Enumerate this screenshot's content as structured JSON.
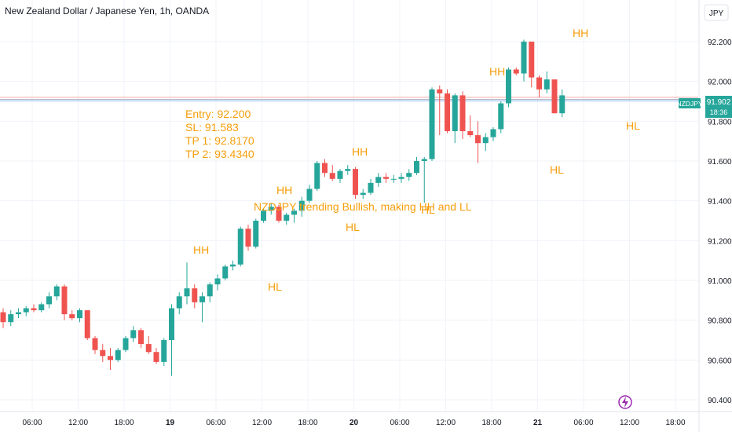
{
  "chart_data": {
    "type": "candlestick",
    "title": "New Zealand Dollar / Japanese Yen, 1h, OANDA",
    "currency_button": "JPY",
    "y_ticks": [
      "92.200",
      "92.000",
      "91.800",
      "91.600",
      "91.400",
      "91.200",
      "91.000",
      "90.800",
      "90.600",
      "90.400"
    ],
    "ylim": [
      90.36,
      92.32
    ],
    "x_ticks": [
      {
        "label": "06:00",
        "bold": false
      },
      {
        "label": "12:00",
        "bold": false
      },
      {
        "label": "18:00",
        "bold": false
      },
      {
        "label": "19",
        "bold": true
      },
      {
        "label": "06:00",
        "bold": false
      },
      {
        "label": "12:00",
        "bold": false
      },
      {
        "label": "18:00",
        "bold": false
      },
      {
        "label": "20",
        "bold": true
      },
      {
        "label": "06:00",
        "bold": false
      },
      {
        "label": "12:00",
        "bold": false
      },
      {
        "label": "18:00",
        "bold": false
      },
      {
        "label": "21",
        "bold": true
      },
      {
        "label": "06:00",
        "bold": false
      },
      {
        "label": "12:00",
        "bold": false
      },
      {
        "label": "18:00",
        "bold": false
      }
    ],
    "candles": [
      [
        90.84,
        90.86,
        90.76,
        90.79
      ],
      [
        90.79,
        90.85,
        90.77,
        90.83
      ],
      [
        90.83,
        90.86,
        90.81,
        90.84
      ],
      [
        90.84,
        90.87,
        90.82,
        90.86
      ],
      [
        90.86,
        90.88,
        90.84,
        90.85
      ],
      [
        90.85,
        90.89,
        90.84,
        90.88
      ],
      [
        90.88,
        90.94,
        90.86,
        90.92
      ],
      [
        90.92,
        90.98,
        90.9,
        90.97
      ],
      [
        90.97,
        90.98,
        90.8,
        90.83
      ],
      [
        90.83,
        90.85,
        90.8,
        90.81
      ],
      [
        90.81,
        90.86,
        90.79,
        90.85
      ],
      [
        90.85,
        90.85,
        90.7,
        90.71
      ],
      [
        90.71,
        90.72,
        90.63,
        90.65
      ],
      [
        90.65,
        90.68,
        90.59,
        90.62
      ],
      [
        90.62,
        90.66,
        90.55,
        90.6
      ],
      [
        90.6,
        90.66,
        90.59,
        90.65
      ],
      [
        90.65,
        90.72,
        90.64,
        90.71
      ],
      [
        90.71,
        90.77,
        90.69,
        90.75
      ],
      [
        90.75,
        90.76,
        90.66,
        90.68
      ],
      [
        90.68,
        90.72,
        90.63,
        90.64
      ],
      [
        90.64,
        90.66,
        90.58,
        90.59
      ],
      [
        90.59,
        90.71,
        90.57,
        90.7
      ],
      [
        90.7,
        90.88,
        90.52,
        90.86
      ],
      [
        90.86,
        90.94,
        90.83,
        90.92
      ],
      [
        90.92,
        91.09,
        90.88,
        90.96
      ],
      [
        90.96,
        90.98,
        90.86,
        90.89
      ],
      [
        90.89,
        90.94,
        90.79,
        90.92
      ],
      [
        90.92,
        90.99,
        90.89,
        90.98
      ],
      [
        90.98,
        91.03,
        90.95,
        91.01
      ],
      [
        91.01,
        91.08,
        91.0,
        91.07
      ],
      [
        91.07,
        91.1,
        91.05,
        91.08
      ],
      [
        91.08,
        91.27,
        91.07,
        91.26
      ],
      [
        91.26,
        91.28,
        91.15,
        91.17
      ],
      [
        91.17,
        91.31,
        91.16,
        91.3
      ],
      [
        91.3,
        91.36,
        91.29,
        91.35
      ],
      [
        91.35,
        91.39,
        91.33,
        91.37
      ],
      [
        91.37,
        91.38,
        91.29,
        91.3
      ],
      [
        91.3,
        91.34,
        91.28,
        91.33
      ],
      [
        91.33,
        91.36,
        91.29,
        91.35
      ],
      [
        91.35,
        91.42,
        91.32,
        91.4
      ],
      [
        91.4,
        91.48,
        91.39,
        91.46
      ],
      [
        91.46,
        91.6,
        91.45,
        91.59
      ],
      [
        91.59,
        91.61,
        91.52,
        91.54
      ],
      [
        91.54,
        91.58,
        91.5,
        91.51
      ],
      [
        91.51,
        91.56,
        91.49,
        91.55
      ],
      [
        91.55,
        91.58,
        91.53,
        91.56
      ],
      [
        91.56,
        91.57,
        91.41,
        91.43
      ],
      [
        91.43,
        91.46,
        91.41,
        91.44
      ],
      [
        91.44,
        91.51,
        91.43,
        91.49
      ],
      [
        91.49,
        91.54,
        91.47,
        91.52
      ],
      [
        91.52,
        91.54,
        91.49,
        91.51
      ],
      [
        91.51,
        91.53,
        91.49,
        91.51
      ],
      [
        91.51,
        91.54,
        91.49,
        91.52
      ],
      [
        91.52,
        91.56,
        91.5,
        91.54
      ],
      [
        91.54,
        91.62,
        91.53,
        91.6
      ],
      [
        91.6,
        91.62,
        91.39,
        91.61
      ],
      [
        91.61,
        91.97,
        91.6,
        91.96
      ],
      [
        91.96,
        91.98,
        91.73,
        91.94
      ],
      [
        91.94,
        91.96,
        91.74,
        91.75
      ],
      [
        91.75,
        91.94,
        91.69,
        91.93
      ],
      [
        91.93,
        91.95,
        91.71,
        91.75
      ],
      [
        91.75,
        91.83,
        91.72,
        91.73
      ],
      [
        91.73,
        91.8,
        91.59,
        91.69
      ],
      [
        91.69,
        91.74,
        91.65,
        91.72
      ],
      [
        91.72,
        91.77,
        91.7,
        91.76
      ],
      [
        91.76,
        91.9,
        91.74,
        91.89
      ],
      [
        91.89,
        92.07,
        91.87,
        92.06
      ],
      [
        92.06,
        92.07,
        92.03,
        92.04
      ],
      [
        92.04,
        92.21,
        92.0,
        92.2
      ],
      [
        92.2,
        92.2,
        91.97,
        92.02
      ],
      [
        92.02,
        92.03,
        91.92,
        91.96
      ],
      [
        91.96,
        92.05,
        91.94,
        92.01
      ],
      [
        92.01,
        92.01,
        91.84,
        91.84
      ],
      [
        91.84,
        91.96,
        91.82,
        91.93
      ]
    ],
    "colors": {
      "up": "#26a69a",
      "down": "#ef5350",
      "annotation": "#f59e0b",
      "price_tag": "#26a69a",
      "grid": "#f0f3fa"
    },
    "price_lines": [
      91.92,
      91.91,
      91.902
    ],
    "price_tag": {
      "symbol": "NZDJPY",
      "price": "91.902",
      "countdown": "18:36"
    },
    "annotations": {
      "trade_lines": [
        "Entry: 92.200",
        "SL: 91.583",
        "TP 1: 92.8170",
        "TP 2: 93.4340"
      ],
      "comment": "NZDJPY trending Bullish, making HH and LL",
      "hh1": "HH",
      "hh2": "HH",
      "hh3": "HH",
      "hh4": "HH",
      "hh5": "HH",
      "hl1": "HL",
      "hl2": "HL",
      "hl3": "HL",
      "hl4": "HL",
      "hl5": "HL"
    }
  }
}
